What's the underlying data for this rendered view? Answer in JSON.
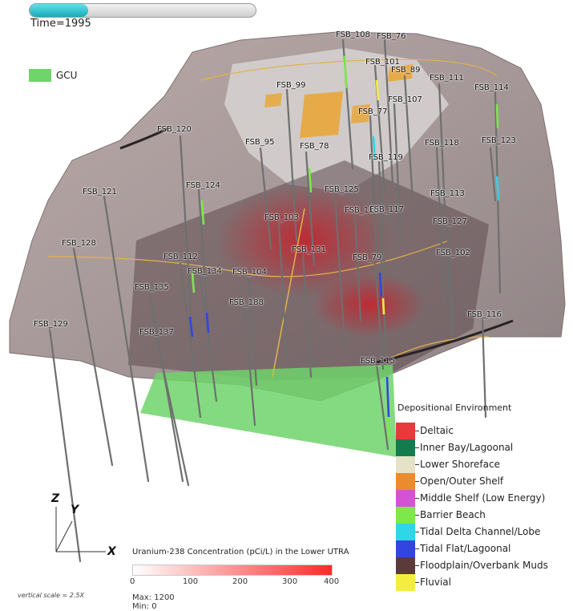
{
  "time": {
    "label": "Time=1995",
    "progress": 0.26
  },
  "gcu_legend": {
    "label": "GCU",
    "color": "#6fd46a"
  },
  "wells": [
    {
      "label": "FSB_108"
    },
    {
      "label": "FSB_76"
    },
    {
      "label": "FSB_101"
    },
    {
      "label": "FSB_89"
    },
    {
      "label": "FSB_111"
    },
    {
      "label": "FSB_114"
    },
    {
      "label": "FSB_99"
    },
    {
      "label": "FSB_107"
    },
    {
      "label": "FSB_77"
    },
    {
      "label": "FSB_120"
    },
    {
      "label": "FSB_95"
    },
    {
      "label": "FSB_78"
    },
    {
      "label": "FSB_118"
    },
    {
      "label": "FSB_123"
    },
    {
      "label": "FSB_119"
    },
    {
      "label": "FSB_121"
    },
    {
      "label": "FSB_124"
    },
    {
      "label": "FSB_125"
    },
    {
      "label": "FSB_113"
    },
    {
      "label": "FSB_103"
    },
    {
      "label": "FSB_110"
    },
    {
      "label": "FSB_117"
    },
    {
      "label": "FSB_127"
    },
    {
      "label": "FSB_128"
    },
    {
      "label": "FSB_131"
    },
    {
      "label": "FSB_102"
    },
    {
      "label": "FSB_112"
    },
    {
      "label": "FSB_79"
    },
    {
      "label": "FSB_134"
    },
    {
      "label": "FSB_104"
    },
    {
      "label": "FSB_135"
    },
    {
      "label": "FSB_188"
    },
    {
      "label": "FSB_116"
    },
    {
      "label": "FSB_129"
    },
    {
      "label": "FSB_137"
    },
    {
      "label": "FSB_115"
    }
  ],
  "depositional_legend": {
    "title": "Depositional Environment",
    "items": [
      {
        "label": "Deltaic",
        "color": "#e83a3a"
      },
      {
        "label": "Inner Bay/Lagoonal",
        "color": "#157a4e"
      },
      {
        "label": "Lower Shoreface",
        "color": "#e5e2c8"
      },
      {
        "label": "Open/Outer Shelf",
        "color": "#ec8a2e"
      },
      {
        "label": "Middle Shelf (Low Energy)",
        "color": "#d552d2"
      },
      {
        "label": "Barrier Beach",
        "color": "#7de849"
      },
      {
        "label": "Tidal Delta Channel/Lobe",
        "color": "#2fd6e6"
      },
      {
        "label": "Tidal Flat/Lagoonal",
        "color": "#3345e0"
      },
      {
        "label": "Floodplain/Overbank Muds",
        "color": "#5a3a3a"
      },
      {
        "label": "Fluvial",
        "color": "#f3ee3c"
      }
    ]
  },
  "colorbar": {
    "title": "Uranium-238 Concentration (pCi/L) in the Lower UTRA",
    "ticks": [
      "0",
      "100",
      "200",
      "300",
      "400"
    ],
    "max_label": "Max:  1200",
    "min_label": "Min:  0",
    "color_low": "#ffffff",
    "color_high": "#ff2a2a"
  },
  "axes": {
    "z": "Z",
    "y": "Y",
    "x": "X"
  },
  "vertical_scale": "vertical scale = 2.5X"
}
